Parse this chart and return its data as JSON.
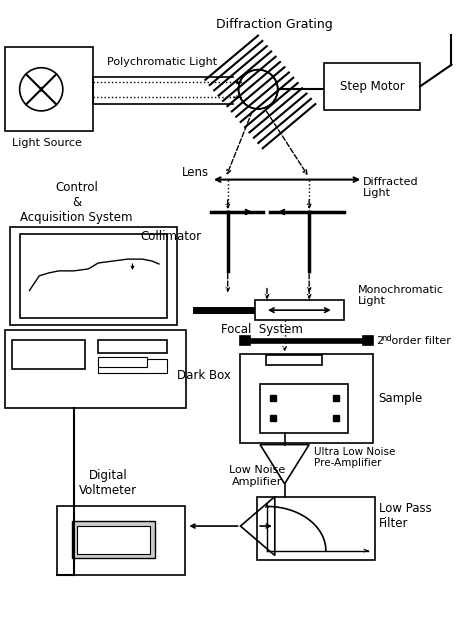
{
  "bg_color": "#ffffff",
  "labels": {
    "diffraction_grating": "Diffraction Grating",
    "step_motor": "Step Motor",
    "polychromatic_light": "Polychromatic Light",
    "diffracted_light": "Diffracted\nLight",
    "light_source": "Light Source",
    "lens": "Lens",
    "collimator": "Collimator",
    "monochromatic_light": "Monochromatic\nLight",
    "focal_system": "Focal  System",
    "second_order": "2nd order filter",
    "second_order_super": "nd",
    "dark_box": "Dark Box",
    "sample": "Sample",
    "ultra_low": "Ultra Low Noise\nPre-Amplifier",
    "low_pass": "Low Pass\nFilter",
    "low_noise": "Low Noise\nAmplifier",
    "digital_volt": "Digital\nVoltmeter",
    "control": "Control\n&\nAcquisition System"
  }
}
